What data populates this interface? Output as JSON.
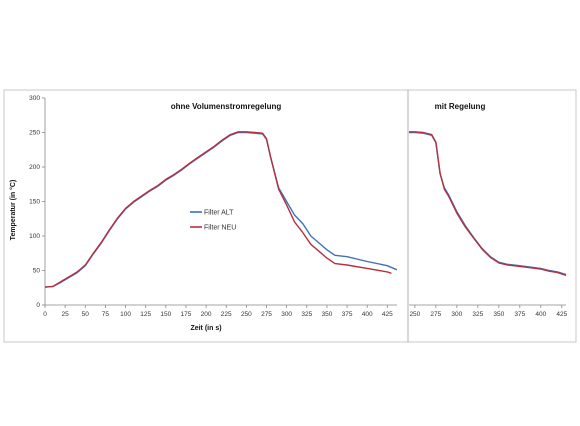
{
  "chart_data": [
    {
      "type": "line",
      "title": "ohne Volumenstromregelung",
      "xlabel": "Zeit (in s)",
      "ylabel": "Temperatur (in °C)",
      "xlim": [
        0,
        437
      ],
      "ylim": [
        0,
        300
      ],
      "xticks": [
        0,
        25,
        50,
        75,
        100,
        125,
        150,
        175,
        200,
        225,
        250,
        275,
        300,
        325,
        350,
        375,
        400,
        425
      ],
      "yticks": [
        0,
        50,
        100,
        150,
        200,
        250,
        300
      ],
      "grid": "none",
      "legend_position": "center",
      "series": [
        {
          "name": "Filter ALT",
          "color": "#3b74b5",
          "x": [
            0,
            10,
            20,
            30,
            40,
            50,
            60,
            70,
            80,
            90,
            100,
            110,
            120,
            130,
            140,
            150,
            160,
            170,
            180,
            190,
            200,
            210,
            220,
            230,
            240,
            250,
            260,
            270,
            275,
            280,
            290,
            300,
            310,
            320,
            330,
            340,
            350,
            360,
            375,
            400,
            425,
            437
          ],
          "y": [
            26,
            27,
            33,
            40,
            47,
            57,
            74,
            90,
            108,
            125,
            139,
            149,
            157,
            165,
            172,
            181,
            188,
            196,
            205,
            213,
            221,
            229,
            238,
            246,
            250,
            250,
            249,
            248,
            240,
            215,
            170,
            150,
            130,
            118,
            100,
            90,
            80,
            72,
            70,
            63,
            57,
            51
          ]
        },
        {
          "name": "Filter NEU",
          "color": "#b5303f",
          "x": [
            0,
            10,
            20,
            30,
            40,
            50,
            60,
            70,
            80,
            90,
            100,
            110,
            120,
            130,
            140,
            150,
            160,
            170,
            180,
            190,
            200,
            210,
            220,
            230,
            240,
            250,
            260,
            270,
            275,
            280,
            290,
            300,
            310,
            320,
            330,
            340,
            350,
            360,
            375,
            400,
            425,
            430
          ],
          "y": [
            26,
            27,
            34,
            41,
            48,
            58,
            75,
            91,
            109,
            126,
            140,
            150,
            158,
            166,
            173,
            182,
            189,
            197,
            206,
            214,
            222,
            230,
            239,
            247,
            251,
            251,
            250,
            249,
            241,
            215,
            168,
            145,
            120,
            105,
            88,
            78,
            68,
            60,
            58,
            53,
            48,
            46
          ]
        }
      ]
    },
    {
      "type": "line",
      "title": "mit Regelung",
      "xlabel": "",
      "ylabel": "",
      "xlim": [
        243,
        430
      ],
      "ylim": [
        0,
        300
      ],
      "xticks": [
        250,
        275,
        300,
        325,
        350,
        375,
        400,
        425
      ],
      "grid": "none",
      "series": [
        {
          "name": "Filter ALT",
          "color": "#3b74b5",
          "x": [
            243,
            250,
            260,
            270,
            275,
            280,
            285,
            290,
            300,
            310,
            320,
            330,
            340,
            350,
            360,
            375,
            400,
            410,
            420,
            430
          ],
          "y": [
            250,
            250,
            249,
            246,
            235,
            190,
            170,
            160,
            135,
            115,
            98,
            82,
            70,
            62,
            59,
            57,
            53,
            50,
            48,
            44
          ]
        },
        {
          "name": "Filter NEU",
          "color": "#b5303f",
          "x": [
            243,
            250,
            260,
            270,
            275,
            280,
            285,
            290,
            300,
            310,
            320,
            330,
            340,
            350,
            360,
            375,
            400,
            410,
            420,
            430
          ],
          "y": [
            251,
            251,
            250,
            247,
            236,
            191,
            168,
            158,
            133,
            113,
            97,
            81,
            69,
            61,
            58,
            56,
            52,
            49,
            47,
            43
          ]
        }
      ]
    }
  ]
}
